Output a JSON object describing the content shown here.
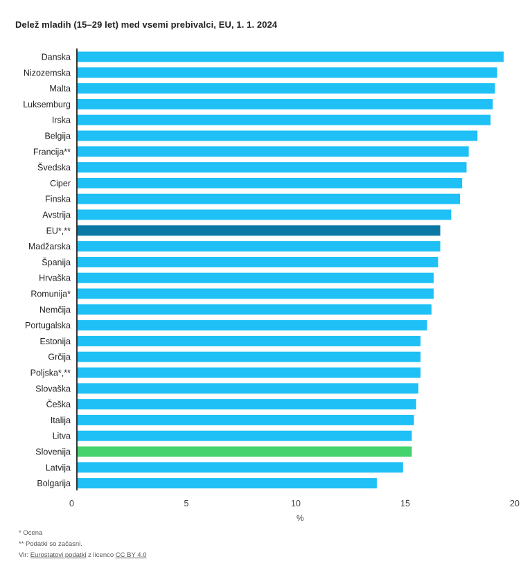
{
  "colors": {
    "bar": "#1EC0F5",
    "highlight_eu": "#0A78A3",
    "highlight_si": "#44D36C",
    "axis": "#333333"
  },
  "chart_data": {
    "type": "bar",
    "orientation": "horizontal",
    "title": "Delež mladih (15–29 let) med vsemi prebivalci, EU, 1. 1. 2024",
    "xlabel": "%",
    "ylabel": "",
    "xlim": [
      0,
      20
    ],
    "xticks": [
      0,
      5,
      10,
      15,
      20
    ],
    "categories": [
      "Danska",
      "Nizozemska",
      "Malta",
      "Luksemburg",
      "Irska",
      "Belgija",
      "Francija**",
      "Švedska",
      "Ciper",
      "Finska",
      "Avstrija",
      "EU*,**",
      "Madžarska",
      "Španija",
      "Hrvaška",
      "Romunija*",
      "Nemčija",
      "Portugalska",
      "Estonija",
      "Grčija",
      "Poljska*,**",
      "Slovaška",
      "Češka",
      "Italija",
      "Litva",
      "Slovenija",
      "Latvija",
      "Bolgarija"
    ],
    "values": [
      19.5,
      19.2,
      19.1,
      19.0,
      18.9,
      18.3,
      17.9,
      17.8,
      17.6,
      17.5,
      17.1,
      16.6,
      16.6,
      16.5,
      16.3,
      16.3,
      16.2,
      16.0,
      15.7,
      15.7,
      15.7,
      15.6,
      15.5,
      15.4,
      15.3,
      15.3,
      14.9,
      13.7
    ],
    "highlight": {
      "EU*,**": "highlight_eu",
      "Slovenija": "highlight_si"
    }
  },
  "footnotes": {
    "estimate": "* Ocena",
    "provisional": "** Podatki so začasni.",
    "source_prefix": "Vir:",
    "source_link": "Eurostatovi podatki",
    "license_text": "z licenco",
    "license_link": "CC BY 4.0"
  }
}
